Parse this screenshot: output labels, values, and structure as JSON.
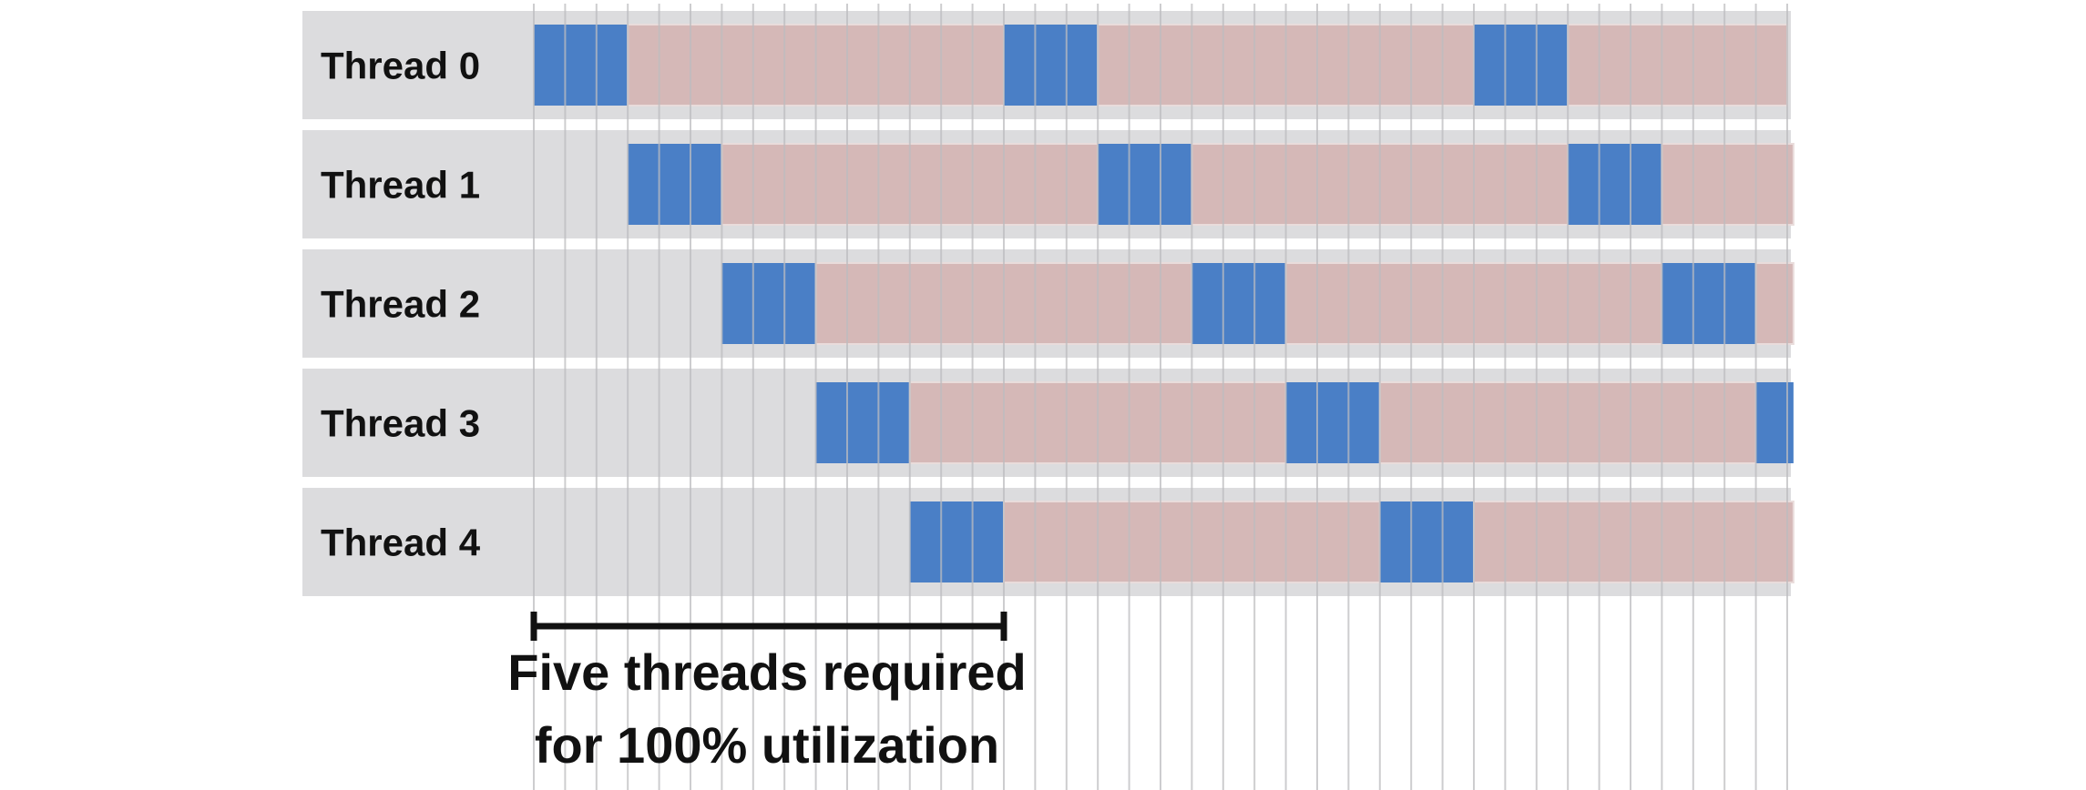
{
  "diagram": {
    "threads": [
      {
        "label": "Thread 0",
        "blocks": [
          {
            "type": "compute",
            "start": 0,
            "end": 3
          },
          {
            "type": "stall",
            "start": 3,
            "end": 15
          },
          {
            "type": "compute",
            "start": 15,
            "end": 18
          },
          {
            "type": "stall",
            "start": 18,
            "end": 30
          },
          {
            "type": "compute",
            "start": 30,
            "end": 33
          },
          {
            "type": "stall",
            "start": 33,
            "end": 40
          }
        ]
      },
      {
        "label": "Thread 1",
        "blocks": [
          {
            "type": "compute",
            "start": 3,
            "end": 6
          },
          {
            "type": "stall",
            "start": 6,
            "end": 18
          },
          {
            "type": "compute",
            "start": 18,
            "end": 21
          },
          {
            "type": "stall",
            "start": 21,
            "end": 33
          },
          {
            "type": "compute",
            "start": 33,
            "end": 36
          },
          {
            "type": "stall",
            "start": 36,
            "end": 40.2
          }
        ]
      },
      {
        "label": "Thread 2",
        "blocks": [
          {
            "type": "compute",
            "start": 6,
            "end": 9
          },
          {
            "type": "stall",
            "start": 9,
            "end": 21
          },
          {
            "type": "compute",
            "start": 21,
            "end": 24
          },
          {
            "type": "stall",
            "start": 24,
            "end": 36
          },
          {
            "type": "compute",
            "start": 36,
            "end": 39
          },
          {
            "type": "stall",
            "start": 39,
            "end": 40.2
          }
        ]
      },
      {
        "label": "Thread 3",
        "blocks": [
          {
            "type": "compute",
            "start": 9,
            "end": 12
          },
          {
            "type": "stall",
            "start": 12,
            "end": 24
          },
          {
            "type": "compute",
            "start": 24,
            "end": 27
          },
          {
            "type": "stall",
            "start": 27,
            "end": 39
          },
          {
            "type": "compute",
            "start": 39,
            "end": 40.2
          }
        ]
      },
      {
        "label": "Thread 4",
        "blocks": [
          {
            "type": "compute",
            "start": 12,
            "end": 15
          },
          {
            "type": "stall",
            "start": 15,
            "end": 27
          },
          {
            "type": "compute",
            "start": 27,
            "end": 30
          },
          {
            "type": "stall",
            "start": 30,
            "end": 40.2
          }
        ]
      }
    ],
    "time_ticks": 40,
    "span": {
      "start": 0,
      "end": 15
    },
    "caption_lines": [
      "Five threads required",
      "for 100% utilization"
    ],
    "colors": {
      "compute": "#4a7fc6",
      "stall": "#d5b8b7",
      "row_bg": "#dcdcde",
      "gridline": "#bdbdc0",
      "text": "#111111"
    }
  }
}
